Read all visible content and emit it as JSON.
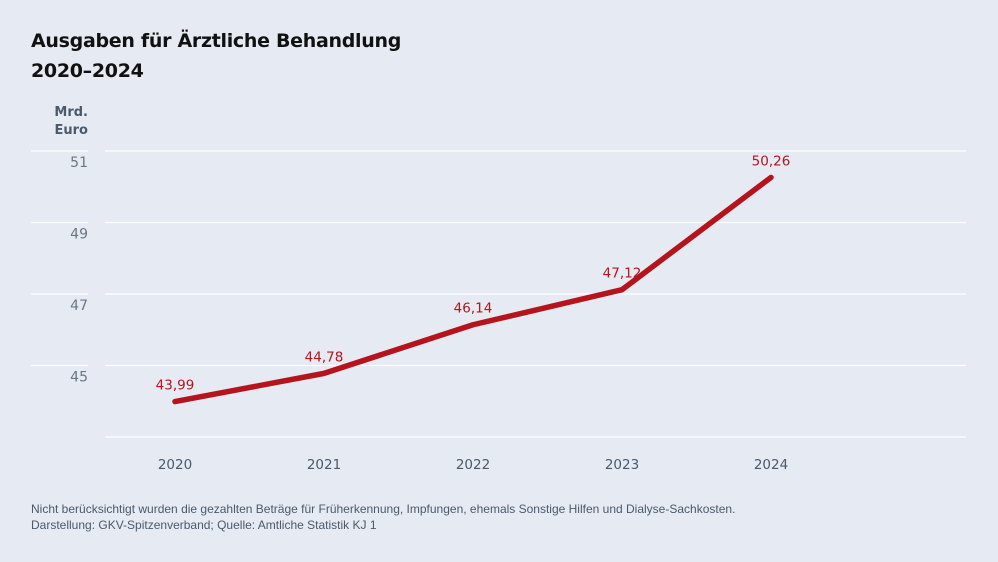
{
  "title_line1": "Ausgaben für Ärztliche Behandlung",
  "title_line2": "2020–2024",
  "footnote": "Nicht berücksichtigt wurden die gezahlten Beträge für Früherkennung, Impfungen, ehemals Sonstige Hilfen und Dialyse-Sachkosten.",
  "source": "Darstellung: GKV-Spitzenverband; Quelle: Amtliche Statistik KJ 1",
  "chart_data": {
    "type": "line",
    "ylabel_line1": "Mrd.",
    "ylabel_line2": "Euro",
    "categories": [
      "2020",
      "2021",
      "2022",
      "2023",
      "2024"
    ],
    "values": [
      43.99,
      44.78,
      46.14,
      47.12,
      50.26
    ],
    "data_labels": [
      "43,99",
      "44,78",
      "46,14",
      "47,12",
      "50,26"
    ],
    "yticks": [
      45,
      47,
      49,
      51
    ],
    "ylim": [
      43,
      51
    ],
    "grid": true,
    "line_color": "#b5141c",
    "label_color": "#b5141c"
  }
}
